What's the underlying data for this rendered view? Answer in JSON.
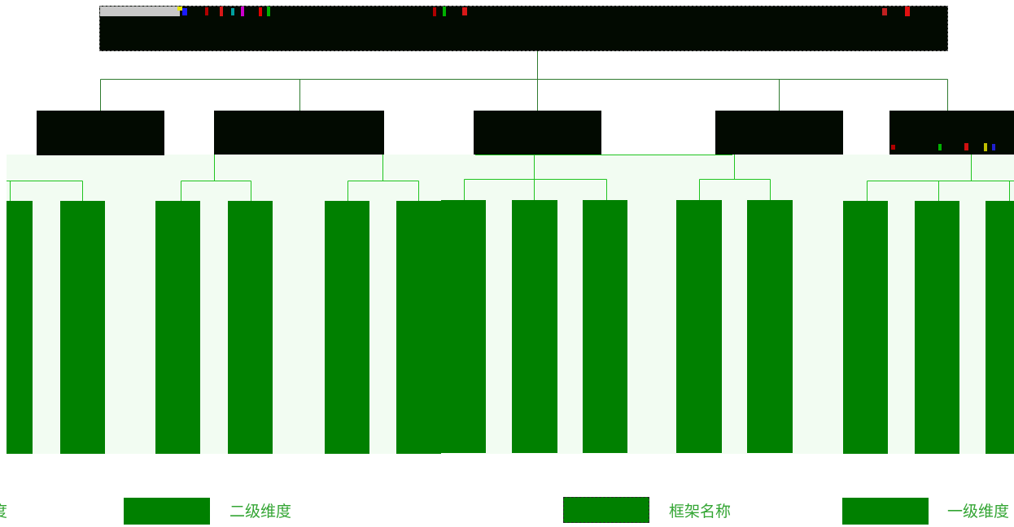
{
  "palette": {
    "framework_fill": "#020a01",
    "level1_fill": "#020a01",
    "level2_fill": "#008000",
    "connector": "#2f7a2f",
    "connector_light": "#1fc41f",
    "band": "#f2fcf2",
    "legend_text": "#33a533"
  },
  "legend": {
    "item_cut_left": "度",
    "item_level2": "二级维度",
    "item_framework": "框架名称",
    "item_level1_cut": "一级维度"
  }
}
